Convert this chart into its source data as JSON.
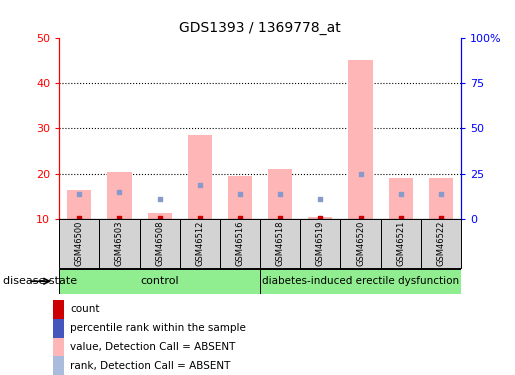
{
  "title": "GDS1393 / 1369778_at",
  "samples": [
    "GSM46500",
    "GSM46503",
    "GSM46508",
    "GSM46512",
    "GSM46516",
    "GSM46518",
    "GSM46519",
    "GSM46520",
    "GSM46521",
    "GSM46522"
  ],
  "pink_bar_heights": [
    16.5,
    20.5,
    11.5,
    28.5,
    19.5,
    21.0,
    10.5,
    45.0,
    19.0,
    19.0
  ],
  "blue_dot_y": [
    15.5,
    16.0,
    14.5,
    17.5,
    15.5,
    15.5,
    14.5,
    20.0,
    15.5,
    15.5
  ],
  "red_square_y": [
    10.2,
    10.2,
    10.2,
    10.2,
    10.2,
    10.2,
    10.2,
    10.2,
    10.2,
    10.2
  ],
  "ylim": [
    10,
    50
  ],
  "y_left_ticks": [
    10,
    20,
    30,
    40,
    50
  ],
  "y_right_ticks": [
    0,
    25,
    50,
    75,
    100
  ],
  "y_right_labels": [
    "0",
    "25",
    "50",
    "75",
    "100%"
  ],
  "pink_color": "#FFB6B6",
  "blue_color": "#8899CC",
  "red_color": "#CC0000",
  "control_label": "control",
  "disease_label": "diabetes-induced erectile dysfunction",
  "group_label": "disease state",
  "legend_labels": [
    "count",
    "percentile rank within the sample",
    "value, Detection Call = ABSENT",
    "rank, Detection Call = ABSENT"
  ],
  "legend_colors": [
    "#CC0000",
    "#4455BB",
    "#FFB6B6",
    "#AABBDD"
  ],
  "background_color": "#FFFFFF",
  "sample_bg_color": "#D3D3D3",
  "control_bg": "#90EE90",
  "disease_bg": "#90EE90",
  "n_control": 5,
  "n_disease": 5
}
